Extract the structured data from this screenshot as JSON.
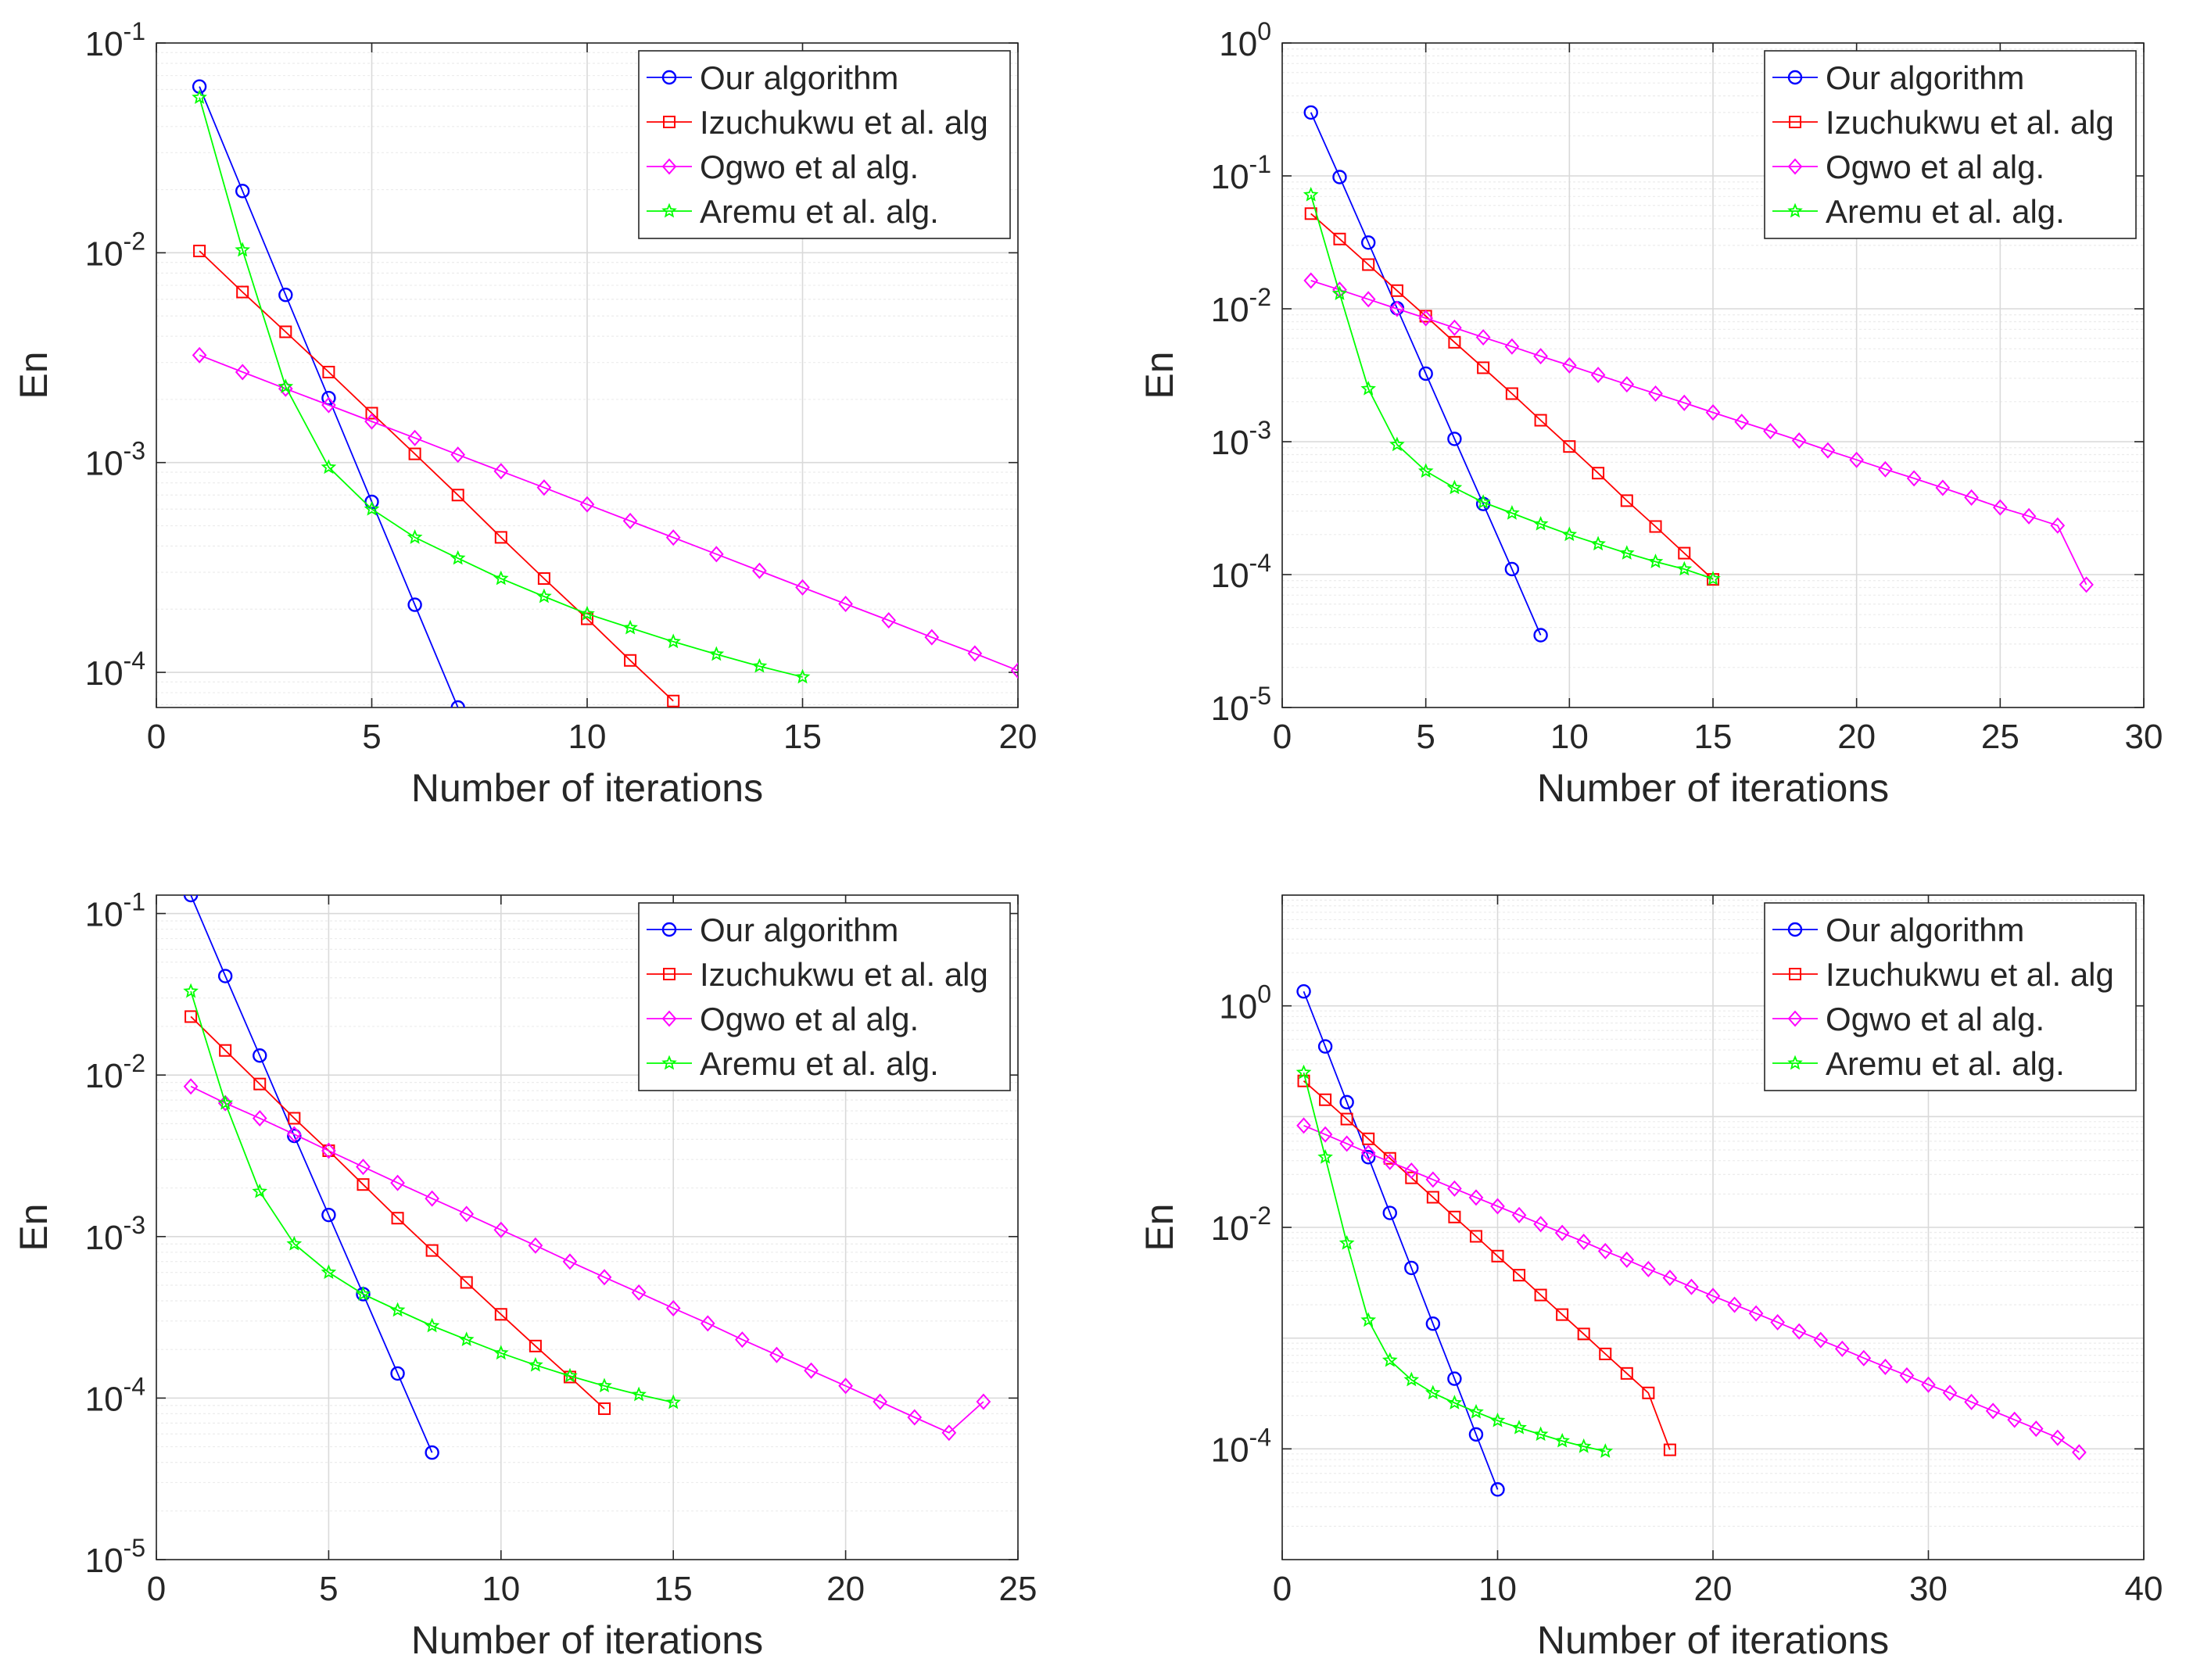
{
  "figure": {
    "panels": 4,
    "layout": "2x2 grid"
  },
  "chart_data": [
    {
      "type": "line",
      "title": "",
      "xlabel": "Number of iterations",
      "ylabel": "En",
      "yscale": "log",
      "grid": "on (major and minor)",
      "legend_position": "top-right",
      "xlim": [
        0,
        20
      ],
      "xticks": [
        0,
        5,
        10,
        15,
        20
      ],
      "ylim": [
        6.8e-05,
        0.1
      ],
      "yticks": [
        {
          "value": 0.1,
          "base": "10",
          "exp": "-1"
        },
        {
          "value": 0.01,
          "base": "10",
          "exp": "-2"
        },
        {
          "value": 0.001,
          "base": "10",
          "exp": "-3"
        },
        {
          "value": 0.0001,
          "base": "10",
          "exp": "-4"
        }
      ],
      "series": [
        {
          "name": "Our algorithm",
          "color": "#0000ff",
          "marker": "circle",
          "x": [
            1,
            2,
            3,
            4,
            5,
            6,
            7
          ],
          "y": [
            0.062,
            0.0197,
            0.0063,
            0.00203,
            0.00065,
            0.00021,
            6.8e-05
          ]
        },
        {
          "name": "Izuchukwu et al. alg",
          "color": "#ff0000",
          "marker": "square",
          "x": [
            1,
            2,
            3,
            4,
            5,
            6,
            7,
            8,
            9,
            10,
            11,
            12
          ],
          "y": [
            0.0102,
            0.0065,
            0.0042,
            0.0027,
            0.00172,
            0.0011,
            0.0007,
            0.00044,
            0.00028,
            0.00018,
            0.000114,
            7.3e-05
          ]
        },
        {
          "name": "Ogwo et al alg.",
          "color": "#ff00ff",
          "marker": "diamond",
          "x": [
            1,
            2,
            3,
            4,
            5,
            6,
            7,
            8,
            9,
            10,
            11,
            12,
            13,
            14,
            15,
            16,
            17,
            18,
            19,
            20
          ],
          "y": [
            0.00325,
            0.0027,
            0.00225,
            0.00188,
            0.00157,
            0.00131,
            0.00109,
            0.00091,
            0.00076,
            0.000632,
            0.000527,
            0.000439,
            0.000366,
            0.000305,
            0.000254,
            0.000212,
            0.000177,
            0.000147,
            0.000123,
            0.000102
          ]
        },
        {
          "name": "Aremu et al. alg.",
          "color": "#00ff00",
          "marker": "star",
          "x": [
            1,
            2,
            3,
            4,
            5,
            6,
            7,
            8,
            9,
            10,
            11,
            12,
            13,
            14,
            15
          ],
          "y": [
            0.055,
            0.0103,
            0.0023,
            0.00095,
            0.0006,
            0.00044,
            0.00035,
            0.00028,
            0.00023,
            0.00019,
            0.000163,
            0.00014,
            0.000122,
            0.000107,
            9.5e-05
          ]
        }
      ]
    },
    {
      "type": "line",
      "title": "",
      "xlabel": "Number of iterations",
      "ylabel": "En",
      "yscale": "log",
      "grid": "on (major and minor)",
      "legend_position": "top-right",
      "xlim": [
        0,
        30
      ],
      "xticks": [
        0,
        5,
        10,
        15,
        20,
        25,
        30
      ],
      "ylim": [
        1e-05,
        1
      ],
      "yticks": [
        {
          "value": 1,
          "base": "10",
          "exp": "0"
        },
        {
          "value": 0.1,
          "base": "10",
          "exp": "-1"
        },
        {
          "value": 0.01,
          "base": "10",
          "exp": "-2"
        },
        {
          "value": 0.001,
          "base": "10",
          "exp": "-3"
        },
        {
          "value": 0.0001,
          "base": "10",
          "exp": "-4"
        },
        {
          "value": 1e-05,
          "base": "10",
          "exp": "-5"
        }
      ],
      "series": [
        {
          "name": "Our algorithm",
          "color": "#0000ff",
          "marker": "circle",
          "x": [
            1,
            2,
            3,
            4,
            5,
            6,
            7,
            8,
            9
          ],
          "y": [
            0.3,
            0.098,
            0.0315,
            0.0101,
            0.00325,
            0.00105,
            0.00034,
            0.00011,
            3.5e-05
          ]
        },
        {
          "name": "Izuchukwu et al. alg",
          "color": "#ff0000",
          "marker": "square",
          "x": [
            1,
            2,
            3,
            4,
            5,
            6,
            7,
            8,
            9,
            10,
            11,
            12,
            13,
            14,
            15
          ],
          "y": [
            0.052,
            0.0335,
            0.0215,
            0.0137,
            0.0088,
            0.0056,
            0.0036,
            0.0023,
            0.00145,
            0.00092,
            0.00058,
            0.00036,
            0.00023,
            0.000145,
            9.2e-05
          ]
        },
        {
          "name": "Ogwo et al alg.",
          "color": "#ff00ff",
          "marker": "diamond",
          "x": [
            1,
            2,
            3,
            4,
            5,
            6,
            7,
            8,
            9,
            10,
            11,
            12,
            13,
            14,
            15,
            16,
            17,
            18,
            19,
            20,
            21,
            22,
            23,
            24,
            25,
            26,
            27,
            28
          ],
          "y": [
            0.0163,
            0.0139,
            0.0118,
            0.01,
            0.0085,
            0.0072,
            0.0061,
            0.0052,
            0.0044,
            0.00375,
            0.00318,
            0.0027,
            0.0023,
            0.00196,
            0.00166,
            0.00141,
            0.0012,
            0.00102,
            0.00086,
            0.00073,
            0.00062,
            0.00053,
            0.00045,
            0.00038,
            0.00032,
            0.000275,
            0.000234,
            8.4e-05
          ]
        },
        {
          "name": "Aremu et al. alg.",
          "color": "#00ff00",
          "marker": "star",
          "x": [
            1,
            2,
            3,
            4,
            5,
            6,
            7,
            8,
            9,
            10,
            11,
            12,
            13,
            14,
            15
          ],
          "y": [
            0.072,
            0.013,
            0.0025,
            0.00095,
            0.0006,
            0.00045,
            0.00035,
            0.00029,
            0.00024,
            0.0002,
            0.00017,
            0.000145,
            0.000125,
            0.00011,
            9.3e-05
          ]
        }
      ]
    },
    {
      "type": "line",
      "title": "",
      "xlabel": "Number of iterations",
      "ylabel": "En",
      "yscale": "log",
      "grid": "on (major and minor)",
      "legend_position": "top-right",
      "xlim": [
        0,
        25
      ],
      "xticks": [
        0,
        5,
        10,
        15,
        20,
        25
      ],
      "ylim": [
        1e-05,
        0.13
      ],
      "yticks": [
        {
          "value": 0.1,
          "base": "10",
          "exp": "-1"
        },
        {
          "value": 0.01,
          "base": "10",
          "exp": "-2"
        },
        {
          "value": 0.001,
          "base": "10",
          "exp": "-3"
        },
        {
          "value": 0.0001,
          "base": "10",
          "exp": "-4"
        },
        {
          "value": 1e-05,
          "base": "10",
          "exp": "-5"
        }
      ],
      "series": [
        {
          "name": "Our algorithm",
          "color": "#0000ff",
          "marker": "circle",
          "x": [
            1,
            2,
            3,
            4,
            5,
            6,
            7,
            8
          ],
          "y": [
            0.13,
            0.041,
            0.0132,
            0.0042,
            0.00136,
            0.00044,
            0.000142,
            4.6e-05
          ]
        },
        {
          "name": "Izuchukwu et al. alg",
          "color": "#ff0000",
          "marker": "square",
          "x": [
            1,
            2,
            3,
            4,
            5,
            6,
            7,
            8,
            9,
            10,
            11,
            12,
            13
          ],
          "y": [
            0.023,
            0.0142,
            0.0088,
            0.0054,
            0.0034,
            0.0021,
            0.0013,
            0.00082,
            0.00052,
            0.00033,
            0.00021,
            0.000135,
            8.6e-05
          ]
        },
        {
          "name": "Ogwo et al alg.",
          "color": "#ff00ff",
          "marker": "diamond",
          "x": [
            1,
            2,
            3,
            4,
            5,
            6,
            7,
            8,
            9,
            10,
            11,
            12,
            13,
            14,
            15,
            16,
            17,
            18,
            19,
            20,
            21,
            22,
            23,
            24
          ],
          "y": [
            0.0085,
            0.0067,
            0.0054,
            0.0043,
            0.0034,
            0.0027,
            0.00215,
            0.00172,
            0.00138,
            0.0011,
            0.00088,
            0.0007,
            0.00056,
            0.00045,
            0.00036,
            0.00029,
            0.00023,
            0.000185,
            0.000148,
            0.000119,
            9.5e-05,
            7.6e-05,
            6.1e-05,
            9.5e-05
          ]
        },
        {
          "name": "Aremu et al. alg.",
          "color": "#00ff00",
          "marker": "star",
          "x": [
            1,
            2,
            3,
            4,
            5,
            6,
            7,
            8,
            9,
            10,
            11,
            12,
            13,
            14,
            15
          ],
          "y": [
            0.033,
            0.0067,
            0.0019,
            0.0009,
            0.0006,
            0.00044,
            0.00035,
            0.00028,
            0.00023,
            0.00019,
            0.00016,
            0.000137,
            0.000119,
            0.000105,
            9.4e-05
          ]
        }
      ]
    },
    {
      "type": "line",
      "title": "",
      "xlabel": "Number of iterations",
      "ylabel": "En",
      "yscale": "log",
      "grid": "on (major and minor)",
      "legend_position": "top-right",
      "xlim": [
        0,
        40
      ],
      "xticks": [
        0,
        10,
        20,
        30,
        40
      ],
      "ylim": [
        1e-05,
        10
      ],
      "yticks": [
        {
          "value": 1,
          "base": "10",
          "exp": "0"
        },
        {
          "value": 0.01,
          "base": "10",
          "exp": "-2"
        },
        {
          "value": 0.0001,
          "base": "10",
          "exp": "-4"
        }
      ],
      "series": [
        {
          "name": "Our algorithm",
          "color": "#0000ff",
          "marker": "circle",
          "x": [
            1,
            2,
            3,
            4,
            5,
            6,
            7,
            8,
            9,
            10
          ],
          "y": [
            1.35,
            0.43,
            0.135,
            0.043,
            0.0135,
            0.0043,
            0.00135,
            0.00043,
            0.000135,
            4.3e-05
          ]
        },
        {
          "name": "Izuchukwu et al. alg",
          "color": "#ff0000",
          "marker": "square",
          "x": [
            1,
            2,
            3,
            4,
            5,
            6,
            7,
            8,
            9,
            10,
            11,
            12,
            13,
            14,
            15,
            16,
            17,
            18
          ],
          "y": [
            0.21,
            0.142,
            0.095,
            0.063,
            0.042,
            0.028,
            0.0187,
            0.0124,
            0.0083,
            0.0055,
            0.0037,
            0.00245,
            0.00163,
            0.00109,
            0.00072,
            0.00048,
            0.00032,
            9.8e-05
          ]
        },
        {
          "name": "Ogwo et al alg.",
          "color": "#ff00ff",
          "marker": "diamond",
          "x": [
            1,
            2,
            3,
            4,
            5,
            6,
            7,
            8,
            9,
            10,
            11,
            12,
            13,
            14,
            15,
            16,
            17,
            18,
            19,
            20,
            21,
            22,
            23,
            24,
            25,
            26,
            27,
            28,
            29,
            30,
            31,
            32,
            33,
            34,
            35,
            36,
            37
          ],
          "y": [
            0.083,
            0.069,
            0.057,
            0.047,
            0.039,
            0.0325,
            0.027,
            0.0224,
            0.0186,
            0.0155,
            0.0129,
            0.0107,
            0.0089,
            0.0074,
            0.0061,
            0.0051,
            0.0042,
            0.0035,
            0.0029,
            0.0024,
            0.002,
            0.00167,
            0.00139,
            0.00115,
            0.00096,
            0.0008,
            0.00066,
            0.00055,
            0.00046,
            0.00038,
            0.00032,
            0.000265,
            0.00022,
            0.000183,
            0.000152,
            0.000126,
            9.3e-05
          ]
        },
        {
          "name": "Aremu et al. alg.",
          "color": "#00ff00",
          "marker": "star",
          "x": [
            1,
            2,
            3,
            4,
            5,
            6,
            7,
            8,
            9,
            10,
            11,
            12,
            13,
            14,
            15
          ],
          "y": [
            0.25,
            0.043,
            0.0072,
            0.00145,
            0.00063,
            0.00042,
            0.00032,
            0.00026,
            0.000215,
            0.00018,
            0.000155,
            0.000135,
            0.000118,
            0.000105,
            9.5e-05
          ]
        }
      ]
    }
  ]
}
